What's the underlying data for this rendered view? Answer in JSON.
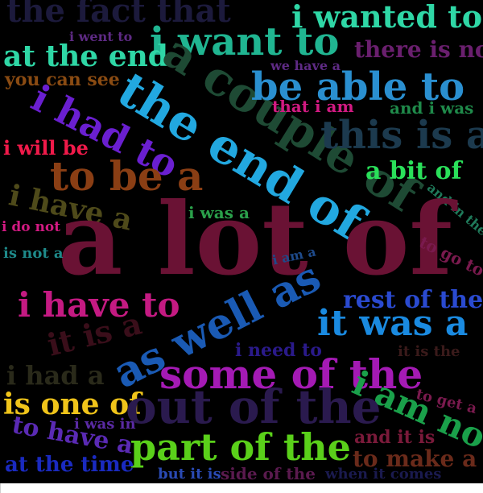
{
  "cloud": {
    "words": [
      {
        "id": "the-fact-that",
        "text": "the fact that",
        "color": "#1c1a3c"
      },
      {
        "id": "i-wanted-to",
        "text": "i wanted to",
        "color": "#2fd7a6"
      },
      {
        "id": "i-went-to",
        "text": "i went to",
        "color": "#5e2a84"
      },
      {
        "id": "i-want-to",
        "text": "i want to",
        "color": "#20b591"
      },
      {
        "id": "there-is-no",
        "text": "there is no",
        "color": "#6a1f6e"
      },
      {
        "id": "at-the-end",
        "text": "at the end",
        "color": "#2fd7a6"
      },
      {
        "id": "you-can-see",
        "text": "you can see",
        "color": "#8a4b12"
      },
      {
        "id": "a-couple-of",
        "text": "a couple of",
        "color": "#1e4a34"
      },
      {
        "id": "we-have-a",
        "text": "we have a",
        "color": "#5e2a84"
      },
      {
        "id": "be-able-to",
        "text": "be able to",
        "color": "#2a8fd0"
      },
      {
        "id": "the-end-of",
        "text": "the end of",
        "color": "#22a8e0"
      },
      {
        "id": "i-had-to",
        "text": "i had to",
        "color": "#6a1fd0"
      },
      {
        "id": "that-i-am",
        "text": "that i am",
        "color": "#d21a82"
      },
      {
        "id": "and-i-was",
        "text": "and i was",
        "color": "#1f8a4a"
      },
      {
        "id": "this-is-a",
        "text": "this is a",
        "color": "#1c3a4e"
      },
      {
        "id": "i-will-be",
        "text": "i will be",
        "color": "#f01a4a"
      },
      {
        "id": "to-be-a",
        "text": "to be a",
        "color": "#8a3e14"
      },
      {
        "id": "a-bit-of",
        "text": "a bit of",
        "color": "#2ae05a"
      },
      {
        "id": "and-in-the",
        "text": "and in the",
        "color": "#1f7a5a"
      },
      {
        "id": "i-have-a",
        "text": "i have a",
        "color": "#4e4a1a"
      },
      {
        "id": "i-was-a",
        "text": "i was a",
        "color": "#2aa04a"
      },
      {
        "id": "i-do-not",
        "text": "i do not",
        "color": "#d21a82"
      },
      {
        "id": "a-lot-of",
        "text": "a lot of",
        "color": "#6a1234"
      },
      {
        "id": "is-not-a",
        "text": "is not a",
        "color": "#1e8a8a"
      },
      {
        "id": "i-am-a",
        "text": "i am a",
        "color": "#1e4a8a"
      },
      {
        "id": "to-go-to",
        "text": "to go to",
        "color": "#7a1a4e"
      },
      {
        "id": "i-have-to",
        "text": "i have to",
        "color": "#c41a82"
      },
      {
        "id": "as-well-as",
        "text": "as well as",
        "color": "#1a5ab4"
      },
      {
        "id": "rest-of-the",
        "text": "rest of the",
        "color": "#2a4ad0"
      },
      {
        "id": "it-is-a",
        "text": "it is a",
        "color": "#3a0e1a"
      },
      {
        "id": "it-was-a",
        "text": "it was a",
        "color": "#1a8ae0"
      },
      {
        "id": "i-need-to",
        "text": "i need to",
        "color": "#2a1a8a"
      },
      {
        "id": "it-is-the",
        "text": "it is the",
        "color": "#3a1a1a"
      },
      {
        "id": "i-had-a",
        "text": "i had a",
        "color": "#2a2a1a"
      },
      {
        "id": "some-of-the",
        "text": "some of the",
        "color": "#a41ab4"
      },
      {
        "id": "i-am-not",
        "text": "i am not",
        "color": "#1aa04a"
      },
      {
        "id": "is-one-of",
        "text": "is one of",
        "color": "#f0c41a"
      },
      {
        "id": "out-of-the",
        "text": "out of the",
        "color": "#2a1a4e"
      },
      {
        "id": "to-get-a",
        "text": "to get a",
        "color": "#7a1a4e"
      },
      {
        "id": "i-was-in",
        "text": "i was in",
        "color": "#5a2aa4"
      },
      {
        "id": "to-have-a",
        "text": "to have a",
        "color": "#5a2ab4"
      },
      {
        "id": "part-of-the",
        "text": "part of the",
        "color": "#5ad01a"
      },
      {
        "id": "and-it-is",
        "text": "and it is",
        "color": "#7a1a3a"
      },
      {
        "id": "at-the-time",
        "text": "at the time",
        "color": "#1a2ac0"
      },
      {
        "id": "to-make-a",
        "text": "to make a",
        "color": "#6a2a1a"
      },
      {
        "id": "but-it-is",
        "text": "but it is",
        "color": "#2a4ab4"
      },
      {
        "id": "side-of-the",
        "text": "side of the",
        "color": "#5a1a4e"
      },
      {
        "id": "when-it-comes",
        "text": "when it comes",
        "color": "#1a1a4e"
      }
    ]
  }
}
